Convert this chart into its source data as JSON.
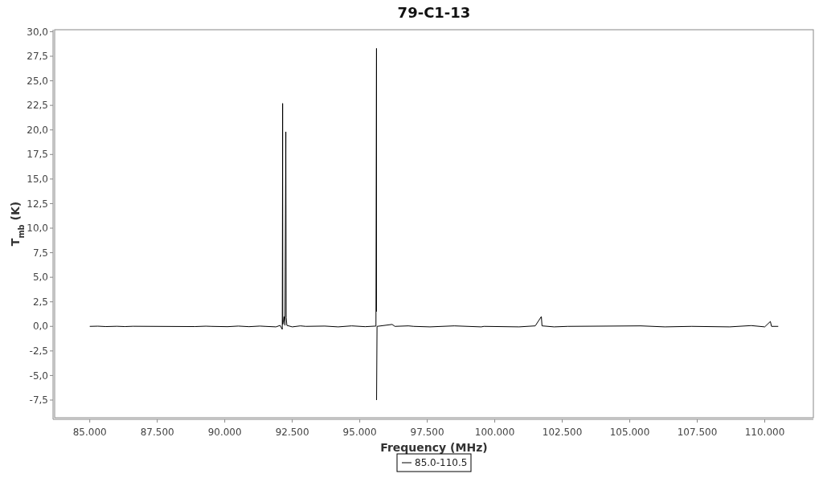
{
  "chart_data": {
    "type": "line",
    "title": "79-C1-13",
    "xlabel": "Frequency (MHz)",
    "ylabel": "T$_{mb}$ (K)",
    "xlim": [
      83700,
      111800
    ],
    "ylim": [
      -9.3,
      30.2
    ],
    "xticks": [
      {
        "value": 85000,
        "label": "85.000"
      },
      {
        "value": 87500,
        "label": "87.500"
      },
      {
        "value": 90000,
        "label": "90.000"
      },
      {
        "value": 92500,
        "label": "92.500"
      },
      {
        "value": 95000,
        "label": "95.000"
      },
      {
        "value": 97500,
        "label": "97.500"
      },
      {
        "value": 100000,
        "label": "100.000"
      },
      {
        "value": 102500,
        "label": "102.500"
      },
      {
        "value": 105000,
        "label": "105.000"
      },
      {
        "value": 107500,
        "label": "107.500"
      },
      {
        "value": 110000,
        "label": "110.000"
      }
    ],
    "yticks": [
      {
        "value": -7.5,
        "label": "-7,5"
      },
      {
        "value": -5,
        "label": "-5,0"
      },
      {
        "value": -2.5,
        "label": "-2,5"
      },
      {
        "value": 0,
        "label": "0,0"
      },
      {
        "value": 2.5,
        "label": "2,5"
      },
      {
        "value": 5,
        "label": "5,0"
      },
      {
        "value": 7.5,
        "label": "7,5"
      },
      {
        "value": 10,
        "label": "10,0"
      },
      {
        "value": 12.5,
        "label": "12,5"
      },
      {
        "value": 15,
        "label": "15,0"
      },
      {
        "value": 17.5,
        "label": "17,5"
      },
      {
        "value": 20,
        "label": "20,0"
      },
      {
        "value": 22.5,
        "label": "22,5"
      },
      {
        "value": 25,
        "label": "25,0"
      },
      {
        "value": 27.5,
        "label": "27,5"
      },
      {
        "value": 30,
        "label": "30,0"
      }
    ],
    "grid": false,
    "legend": "bottom",
    "marker": "none",
    "line_style": "solid",
    "series": [
      {
        "name": "85.0-110.5",
        "color": "#000000",
        "x": [
          85000,
          85300,
          85600,
          86000,
          86300,
          86600,
          88900,
          89300,
          89500,
          90100,
          90500,
          90900,
          91300,
          91500,
          91900,
          92050,
          92130,
          92143,
          92150,
          92200,
          92230,
          92262,
          92275,
          92300,
          92500,
          92800,
          93000,
          93700,
          94200,
          94700,
          95200,
          95400,
          95600,
          95620,
          95621,
          95622,
          95623,
          95640,
          96200,
          96300,
          96800,
          97000,
          97600,
          98500,
          99500,
          99600,
          100900,
          101500,
          101726,
          101750,
          102200,
          102700,
          105400,
          106300,
          107300,
          108700,
          109500,
          110000,
          110208,
          110250,
          110500
        ],
        "values": [
          0,
          0.02,
          -0.02,
          0.01,
          -0.02,
          0.01,
          -0.02,
          0.02,
          0,
          -0.03,
          0.03,
          -0.03,
          0.03,
          0,
          -0.05,
          0.1,
          -0.3,
          22.7,
          0.2,
          1.0,
          0.1,
          19.8,
          0.9,
          0.1,
          -0.05,
          0.05,
          0,
          0.03,
          -0.05,
          0.05,
          -0.03,
          0,
          0.03,
          28.3,
          1.5,
          null,
          -7.5,
          0,
          0.2,
          0,
          0.05,
          0,
          -0.05,
          0.05,
          -0.05,
          0,
          -0.05,
          0.05,
          1.0,
          0.05,
          -0.05,
          0,
          0.05,
          -0.05,
          0,
          -0.05,
          0.08,
          -0.05,
          0.5,
          0,
          0
        ]
      }
    ]
  }
}
